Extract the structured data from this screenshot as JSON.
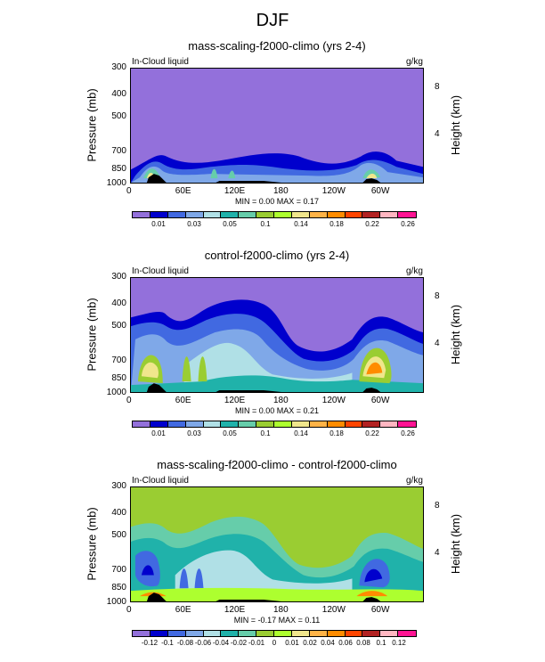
{
  "main_title": "DJF",
  "chart_data": [
    {
      "type": "heatmap",
      "title": "mass-scaling-f2000-climo (yrs 2-4)",
      "left_label": "In-Cloud liquid",
      "units": "g/kg",
      "ylabel": "Pressure (mb)",
      "y2label": "Height (km)",
      "xticks": [
        "0",
        "60E",
        "120E",
        "180",
        "120W",
        "60W"
      ],
      "yticks": [
        "300",
        "400",
        "500",
        "700",
        "850",
        "1000"
      ],
      "y2ticks": [
        "8",
        "4"
      ],
      "min_label": "MIN =",
      "min_value": "0.00",
      "max_label": "MAX =",
      "max_value": "0.17",
      "colorbar_labels": [
        "0.01",
        "0.03",
        "0.05",
        "0.1",
        "0.14",
        "0.18",
        "0.22",
        "0.26"
      ],
      "colorbar_colors": [
        "#9370db",
        "#0000cd",
        "#4169e1",
        "#7fa8e8",
        "#b0e0e6",
        "#20b2aa",
        "#66cdaa",
        "#9acd32",
        "#adff2f",
        "#f0e68c",
        "#ffb347",
        "#ff8c00",
        "#ff4500",
        "#b22222",
        "#ffb6c1",
        "#ff1493"
      ]
    },
    {
      "type": "heatmap",
      "title": "control-f2000-climo (yrs 2-4)",
      "left_label": "In-Cloud liquid",
      "units": "g/kg",
      "ylabel": "Pressure (mb)",
      "y2label": "Height (km)",
      "xticks": [
        "0",
        "60E",
        "120E",
        "180",
        "120W",
        "60W"
      ],
      "yticks": [
        "300",
        "400",
        "500",
        "700",
        "850",
        "1000"
      ],
      "y2ticks": [
        "8",
        "4"
      ],
      "min_label": "MIN =",
      "min_value": "0.00",
      "max_label": "MAX =",
      "max_value": "0.21",
      "colorbar_labels": [
        "0.01",
        "0.03",
        "0.05",
        "0.1",
        "0.14",
        "0.18",
        "0.22",
        "0.26"
      ],
      "colorbar_colors": [
        "#9370db",
        "#0000cd",
        "#4169e1",
        "#7fa8e8",
        "#b0e0e6",
        "#20b2aa",
        "#66cdaa",
        "#9acd32",
        "#adff2f",
        "#f0e68c",
        "#ffb347",
        "#ff8c00",
        "#ff4500",
        "#b22222",
        "#ffb6c1",
        "#ff1493"
      ]
    },
    {
      "type": "heatmap",
      "title": "mass-scaling-f2000-climo - control-f2000-climo",
      "left_label": "In-Cloud liquid",
      "units": "g/kg",
      "ylabel": "Pressure (mb)",
      "y2label": "Height (km)",
      "xticks": [
        "0",
        "60E",
        "120E",
        "180",
        "120W",
        "60W"
      ],
      "yticks": [
        "300",
        "400",
        "500",
        "700",
        "850",
        "1000"
      ],
      "y2ticks": [
        "8",
        "4"
      ],
      "min_label": "MIN =",
      "min_value": "-0.17",
      "max_label": "MAX =",
      "max_value": "0.11",
      "colorbar_labels": [
        "-0.12",
        "-0.1",
        "-0.08",
        "-0.06",
        "-0.04",
        "-0.02",
        "-0.01",
        "0",
        "0.01",
        "0.02",
        "0.04",
        "0.06",
        "0.08",
        "0.1",
        "0.12"
      ],
      "colorbar_colors": [
        "#9370db",
        "#0000cd",
        "#4169e1",
        "#7fa8e8",
        "#b0e0e6",
        "#20b2aa",
        "#66cdaa",
        "#9acd32",
        "#adff2f",
        "#f0e68c",
        "#ffb347",
        "#ff8c00",
        "#ff4500",
        "#b22222",
        "#ffb6c1",
        "#ff1493"
      ]
    }
  ]
}
